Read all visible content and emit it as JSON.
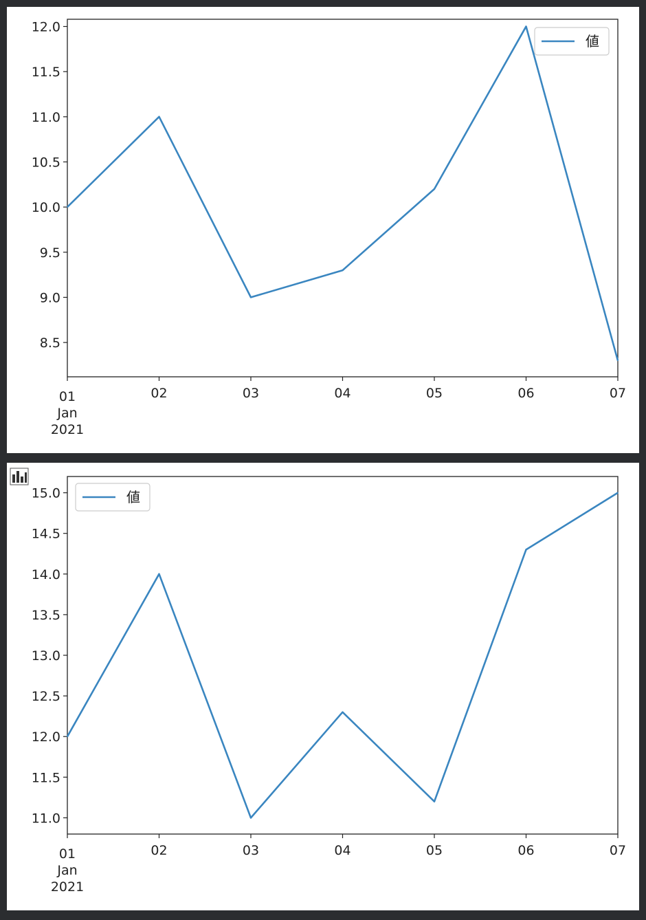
{
  "colors": {
    "background": "#2b2d30",
    "panel": "#ffffff",
    "line": "#3a86c0",
    "axis": "#222222"
  },
  "icons": {
    "toolbar": "bar-chart-icon"
  },
  "chart_data": [
    {
      "type": "line",
      "x": [
        "01",
        "02",
        "03",
        "04",
        "05",
        "06",
        "07"
      ],
      "x_first_label_extra": [
        "Jan",
        "2021"
      ],
      "series": [
        {
          "name": "値",
          "values": [
            10.0,
            11.0,
            9.0,
            9.3,
            10.2,
            12.0,
            8.3
          ]
        }
      ],
      "yticks": [
        "8.5",
        "9.0",
        "9.5",
        "10.0",
        "10.5",
        "11.0",
        "11.5",
        "12.0"
      ],
      "ylim": [
        8.12,
        12.08
      ],
      "grid": false,
      "legend": "upper right"
    },
    {
      "type": "line",
      "x": [
        "01",
        "02",
        "03",
        "04",
        "05",
        "06",
        "07"
      ],
      "x_first_label_extra": [
        "Jan",
        "2021"
      ],
      "series": [
        {
          "name": "値",
          "values": [
            12.0,
            14.0,
            11.0,
            12.3,
            11.2,
            14.3,
            15.0
          ]
        }
      ],
      "yticks": [
        "11.0",
        "11.5",
        "12.0",
        "12.5",
        "13.0",
        "13.5",
        "14.0",
        "14.5",
        "15.0"
      ],
      "ylim": [
        10.8,
        15.2
      ],
      "grid": false,
      "legend": "upper left"
    }
  ]
}
